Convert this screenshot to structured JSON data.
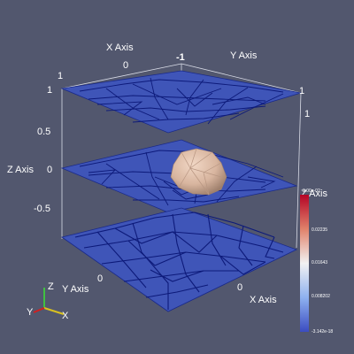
{
  "viewport": {
    "background": "#52576e",
    "slice_color": "#3f55b8",
    "mesh_color": "#0d1a7a",
    "object_color": "#d8b59f"
  },
  "axes": {
    "x_title_top": "X Axis",
    "y_title_top": "Y Axis",
    "z_title_left": "Z Axis",
    "z_title_right": "Z Axis",
    "y_title_bottom": "Y Axis",
    "x_title_bottom": "X Axis",
    "top_ticks": {
      "x0": "0",
      "xm1": "-1",
      "one_left": "1",
      "one_right": "1"
    },
    "z_ticks": [
      "1",
      "0.5",
      "0",
      "-0.5"
    ],
    "right_ticks": {
      "one": "1"
    },
    "bottom_ticks": {
      "y0": "0",
      "x0": "0"
    }
  },
  "colorbar": {
    "top_label": "3.00e-02",
    "labels": [
      "0.02235",
      "0.01643",
      "0.008202",
      "-3.142e-18"
    ],
    "colors": {
      "high": "#b40426",
      "mid": "#f2f2f2",
      "low": "#3b4cc0"
    }
  },
  "orientation_widget": {
    "axes": [
      "Z",
      "Y",
      "X"
    ]
  }
}
